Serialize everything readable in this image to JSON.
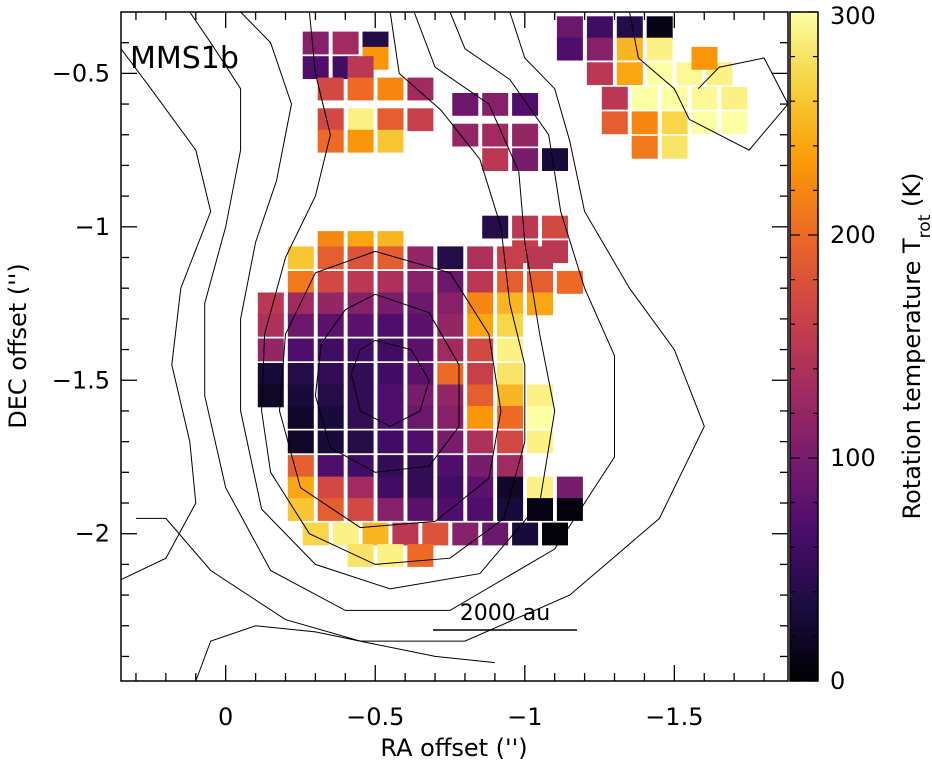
{
  "panel_label": "MMS1b",
  "scale_bar": {
    "label": "2000 au",
    "length_arcsec": 0.5
  },
  "chart_data": {
    "type": "heatmap",
    "title": "",
    "xlabel": "RA offset ('')",
    "ylabel": "DEC offset ('')",
    "colorbar_label": "Rotation temperature T",
    "colorbar_label_sub": "rot",
    "colorbar_label_unit": " (K)",
    "xlim": [
      0.35,
      -1.88
    ],
    "ylim": [
      -2.48,
      -0.3
    ],
    "x_ticks": [
      0,
      -0.5,
      -1,
      -1.5
    ],
    "x_tick_labels": [
      "0",
      "−0.5",
      "−1",
      "−1.5"
    ],
    "y_ticks": [
      -0.5,
      -1,
      -1.5,
      -2
    ],
    "y_tick_labels": [
      "−0.5",
      "−1",
      "−1.5",
      "−2"
    ],
    "colorbar_range": [
      0,
      300
    ],
    "colorbar_ticks": [
      0,
      100,
      200,
      300
    ],
    "colorbar_tick_labels": [
      "0",
      "100",
      "200",
      "300"
    ],
    "colormap": [
      "#000004",
      "#1b0c41",
      "#4a0c6b",
      "#781c6d",
      "#a52c60",
      "#cf4446",
      "#ed6925",
      "#fb9b06",
      "#f7d13d",
      "#fcffa4"
    ],
    "pixel_size_arcsec": 0.085,
    "grid": false,
    "cells": [
      [
        -0.3,
        -0.4,
        110
      ],
      [
        -0.4,
        -0.4,
        130
      ],
      [
        -0.5,
        -0.4,
        40
      ],
      [
        -0.5,
        -0.45,
        230
      ],
      [
        -0.3,
        -0.48,
        70
      ],
      [
        -0.4,
        -0.48,
        60
      ],
      [
        -0.45,
        -0.48,
        150
      ],
      [
        -0.35,
        -0.55,
        170
      ],
      [
        -0.45,
        -0.55,
        200
      ],
      [
        -0.55,
        -0.55,
        220
      ],
      [
        -0.65,
        -0.55,
        130
      ],
      [
        -0.35,
        -0.65,
        170
      ],
      [
        -0.45,
        -0.65,
        290
      ],
      [
        -0.55,
        -0.65,
        190
      ],
      [
        -0.65,
        -0.65,
        160
      ],
      [
        -0.35,
        -0.72,
        200
      ],
      [
        -0.45,
        -0.72,
        230
      ],
      [
        -0.55,
        -0.72,
        260
      ],
      [
        -0.8,
        -0.6,
        90
      ],
      [
        -0.9,
        -0.6,
        110
      ],
      [
        -1.0,
        -0.6,
        70
      ],
      [
        -0.8,
        -0.7,
        120
      ],
      [
        -0.9,
        -0.7,
        130
      ],
      [
        -1.0,
        -0.7,
        120
      ],
      [
        -0.9,
        -0.78,
        150
      ],
      [
        -1.0,
        -0.78,
        100
      ],
      [
        -1.1,
        -0.78,
        30
      ],
      [
        -1.15,
        -0.35,
        90
      ],
      [
        -1.25,
        -0.35,
        60
      ],
      [
        -1.35,
        -0.35,
        40
      ],
      [
        -1.45,
        -0.35,
        10
      ],
      [
        -1.15,
        -0.42,
        70
      ],
      [
        -1.25,
        -0.42,
        110
      ],
      [
        -1.35,
        -0.42,
        250
      ],
      [
        -1.45,
        -0.42,
        290
      ],
      [
        -1.25,
        -0.5,
        150
      ],
      [
        -1.35,
        -0.5,
        240
      ],
      [
        -1.45,
        -0.5,
        300
      ],
      [
        -1.55,
        -0.5,
        295
      ],
      [
        -1.65,
        -0.5,
        290
      ],
      [
        -1.6,
        -0.45,
        230
      ],
      [
        -1.3,
        -0.58,
        150
      ],
      [
        -1.4,
        -0.58,
        300
      ],
      [
        -1.5,
        -0.58,
        300
      ],
      [
        -1.6,
        -0.58,
        295
      ],
      [
        -1.7,
        -0.58,
        290
      ],
      [
        -1.3,
        -0.66,
        190
      ],
      [
        -1.4,
        -0.66,
        220
      ],
      [
        -1.5,
        -0.66,
        270
      ],
      [
        -1.6,
        -0.66,
        300
      ],
      [
        -1.7,
        -0.66,
        300
      ],
      [
        -1.4,
        -0.74,
        210
      ],
      [
        -1.5,
        -0.74,
        280
      ],
      [
        -0.9,
        -1.0,
        40
      ],
      [
        -1.0,
        -1.0,
        150
      ],
      [
        -1.1,
        -1.0,
        170
      ],
      [
        -1.0,
        -1.08,
        160
      ],
      [
        -1.1,
        -1.08,
        150
      ],
      [
        -0.35,
        -1.05,
        220
      ],
      [
        -0.45,
        -1.05,
        240
      ],
      [
        -0.55,
        -1.05,
        250
      ],
      [
        -0.25,
        -1.1,
        260
      ],
      [
        -0.35,
        -1.1,
        190
      ],
      [
        -0.45,
        -1.1,
        180
      ],
      [
        -0.55,
        -1.1,
        190
      ],
      [
        -0.65,
        -1.1,
        120
      ],
      [
        -0.75,
        -1.1,
        40
      ],
      [
        -0.85,
        -1.1,
        140
      ],
      [
        -0.95,
        -1.1,
        160
      ],
      [
        -1.05,
        -1.1,
        150
      ],
      [
        -0.25,
        -1.18,
        210
      ],
      [
        -0.35,
        -1.18,
        170
      ],
      [
        -0.45,
        -1.18,
        150
      ],
      [
        -0.55,
        -1.18,
        140
      ],
      [
        -0.65,
        -1.18,
        110
      ],
      [
        -0.75,
        -1.18,
        90
      ],
      [
        -0.85,
        -1.18,
        150
      ],
      [
        -0.95,
        -1.18,
        190
      ],
      [
        -1.05,
        -1.18,
        190
      ],
      [
        -1.15,
        -1.18,
        200
      ],
      [
        -0.15,
        -1.25,
        150
      ],
      [
        -0.25,
        -1.25,
        130
      ],
      [
        -0.35,
        -1.25,
        120
      ],
      [
        -0.45,
        -1.25,
        110
      ],
      [
        -0.55,
        -1.25,
        100
      ],
      [
        -0.65,
        -1.25,
        90
      ],
      [
        -0.75,
        -1.25,
        110
      ],
      [
        -0.85,
        -1.25,
        220
      ],
      [
        -0.95,
        -1.25,
        250
      ],
      [
        -1.05,
        -1.25,
        240
      ],
      [
        -0.15,
        -1.32,
        140
      ],
      [
        -0.25,
        -1.32,
        90
      ],
      [
        -0.35,
        -1.32,
        80
      ],
      [
        -0.45,
        -1.32,
        80
      ],
      [
        -0.55,
        -1.32,
        70
      ],
      [
        -0.65,
        -1.32,
        80
      ],
      [
        -0.75,
        -1.32,
        120
      ],
      [
        -0.85,
        -1.32,
        240
      ],
      [
        -0.95,
        -1.32,
        270
      ],
      [
        -0.15,
        -1.4,
        120
      ],
      [
        -0.25,
        -1.4,
        70
      ],
      [
        -0.35,
        -1.4,
        60
      ],
      [
        -0.45,
        -1.4,
        60
      ],
      [
        -0.55,
        -1.4,
        60
      ],
      [
        -0.65,
        -1.4,
        80
      ],
      [
        -0.75,
        -1.4,
        130
      ],
      [
        -0.85,
        -1.4,
        170
      ],
      [
        -0.95,
        -1.4,
        290
      ],
      [
        -0.15,
        -1.48,
        30
      ],
      [
        -0.25,
        -1.48,
        40
      ],
      [
        -0.35,
        -1.48,
        50
      ],
      [
        -0.45,
        -1.48,
        50
      ],
      [
        -0.55,
        -1.48,
        60
      ],
      [
        -0.65,
        -1.48,
        80
      ],
      [
        -0.75,
        -1.48,
        200
      ],
      [
        -0.85,
        -1.48,
        160
      ],
      [
        -0.95,
        -1.48,
        280
      ],
      [
        -0.15,
        -1.55,
        20
      ],
      [
        -0.25,
        -1.55,
        30
      ],
      [
        -0.35,
        -1.55,
        40
      ],
      [
        -0.45,
        -1.55,
        50
      ],
      [
        -0.55,
        -1.55,
        70
      ],
      [
        -0.65,
        -1.55,
        100
      ],
      [
        -0.75,
        -1.55,
        120
      ],
      [
        -0.85,
        -1.55,
        190
      ],
      [
        -0.95,
        -1.55,
        250
      ],
      [
        -1.05,
        -1.55,
        290
      ],
      [
        -0.25,
        -1.62,
        20
      ],
      [
        -0.35,
        -1.62,
        30
      ],
      [
        -0.45,
        -1.62,
        50
      ],
      [
        -0.55,
        -1.62,
        70
      ],
      [
        -0.65,
        -1.62,
        90
      ],
      [
        -0.75,
        -1.62,
        110
      ],
      [
        -0.85,
        -1.62,
        230
      ],
      [
        -0.95,
        -1.62,
        200
      ],
      [
        -1.05,
        -1.62,
        300
      ],
      [
        -0.25,
        -1.7,
        20
      ],
      [
        -0.35,
        -1.7,
        30
      ],
      [
        -0.45,
        -1.7,
        40
      ],
      [
        -0.55,
        -1.7,
        60
      ],
      [
        -0.65,
        -1.7,
        70
      ],
      [
        -0.75,
        -1.7,
        100
      ],
      [
        -0.85,
        -1.7,
        140
      ],
      [
        -0.95,
        -1.7,
        170
      ],
      [
        -1.05,
        -1.7,
        290
      ],
      [
        -0.25,
        -1.78,
        190
      ],
      [
        -0.35,
        -1.78,
        70
      ],
      [
        -0.45,
        -1.78,
        60
      ],
      [
        -0.55,
        -1.78,
        50
      ],
      [
        -0.65,
        -1.78,
        50
      ],
      [
        -0.75,
        -1.78,
        70
      ],
      [
        -0.85,
        -1.78,
        100
      ],
      [
        -0.95,
        -1.78,
        130
      ],
      [
        -0.25,
        -1.85,
        240
      ],
      [
        -0.35,
        -1.85,
        170
      ],
      [
        -0.45,
        -1.85,
        130
      ],
      [
        -0.55,
        -1.85,
        60
      ],
      [
        -0.65,
        -1.85,
        50
      ],
      [
        -0.75,
        -1.85,
        60
      ],
      [
        -0.85,
        -1.85,
        80
      ],
      [
        -0.95,
        -1.85,
        20
      ],
      [
        -1.05,
        -1.85,
        290
      ],
      [
        -1.15,
        -1.85,
        100
      ],
      [
        -0.25,
        -1.92,
        260
      ],
      [
        -0.35,
        -1.92,
        190
      ],
      [
        -0.45,
        -1.92,
        170
      ],
      [
        -0.55,
        -1.92,
        110
      ],
      [
        -0.65,
        -1.92,
        80
      ],
      [
        -0.75,
        -1.92,
        70
      ],
      [
        -0.85,
        -1.92,
        70
      ],
      [
        -0.95,
        -1.92,
        30
      ],
      [
        -1.05,
        -1.92,
        10
      ],
      [
        -1.15,
        -1.92,
        5
      ],
      [
        -0.3,
        -2.0,
        270
      ],
      [
        -0.4,
        -2.0,
        290
      ],
      [
        -0.5,
        -2.0,
        250
      ],
      [
        -0.6,
        -2.0,
        150
      ],
      [
        -0.7,
        -2.0,
        180
      ],
      [
        -0.8,
        -2.0,
        110
      ],
      [
        -0.9,
        -2.0,
        90
      ],
      [
        -1.0,
        -2.0,
        30
      ],
      [
        -1.1,
        -2.0,
        5
      ],
      [
        -0.45,
        -2.07,
        280
      ],
      [
        -0.55,
        -2.07,
        290
      ],
      [
        -0.65,
        -2.07,
        200
      ]
    ],
    "contours": [
      [
        [
          -0.5,
          -1.37
        ],
        [
          -0.62,
          -1.4
        ],
        [
          -0.68,
          -1.5
        ],
        [
          -0.65,
          -1.6
        ],
        [
          -0.55,
          -1.65
        ],
        [
          -0.45,
          -1.6
        ],
        [
          -0.42,
          -1.48
        ],
        [
          -0.45,
          -1.4
        ],
        [
          -0.5,
          -1.37
        ]
      ],
      [
        [
          -0.5,
          -1.22
        ],
        [
          -0.68,
          -1.28
        ],
        [
          -0.78,
          -1.45
        ],
        [
          -0.78,
          -1.65
        ],
        [
          -0.68,
          -1.78
        ],
        [
          -0.5,
          -1.8
        ],
        [
          -0.35,
          -1.72
        ],
        [
          -0.3,
          -1.55
        ],
        [
          -0.32,
          -1.38
        ],
        [
          -0.4,
          -1.27
        ],
        [
          -0.5,
          -1.22
        ]
      ],
      [
        [
          -0.5,
          -1.08
        ],
        [
          -0.75,
          -1.15
        ],
        [
          -0.88,
          -1.35
        ],
        [
          -0.92,
          -1.6
        ],
        [
          -0.88,
          -1.82
        ],
        [
          -0.7,
          -1.96
        ],
        [
          -0.45,
          -1.98
        ],
        [
          -0.25,
          -1.85
        ],
        [
          -0.18,
          -1.6
        ],
        [
          -0.2,
          -1.35
        ],
        [
          -0.3,
          -1.15
        ],
        [
          -0.5,
          -1.08
        ]
      ],
      [
        [
          -0.55,
          -0.3
        ],
        [
          -0.58,
          -0.5
        ],
        [
          -0.72,
          -0.62
        ],
        [
          -0.85,
          -0.78
        ],
        [
          -0.92,
          -1.0
        ],
        [
          -0.95,
          -1.25
        ],
        [
          -1.0,
          -1.45
        ],
        [
          -1.0,
          -1.7
        ],
        [
          -0.93,
          -1.95
        ],
        [
          -0.75,
          -2.08
        ],
        [
          -0.5,
          -2.1
        ],
        [
          -0.28,
          -2.0
        ],
        [
          -0.15,
          -1.8
        ],
        [
          -0.12,
          -1.6
        ],
        [
          -0.13,
          -1.35
        ],
        [
          -0.2,
          -1.1
        ],
        [
          -0.3,
          -0.9
        ],
        [
          -0.35,
          -0.7
        ],
        [
          -0.3,
          -0.5
        ],
        [
          -0.28,
          -0.3
        ]
      ],
      [
        [
          -0.63,
          -0.3
        ],
        [
          -0.7,
          -0.48
        ],
        [
          -0.88,
          -0.6
        ],
        [
          -0.98,
          -0.82
        ],
        [
          -1.0,
          -1.05
        ],
        [
          -1.05,
          -1.35
        ],
        [
          -1.1,
          -1.6
        ],
        [
          -1.05,
          -1.9
        ],
        [
          -0.85,
          -2.13
        ],
        [
          -0.55,
          -2.18
        ],
        [
          -0.3,
          -2.1
        ],
        [
          -0.12,
          -1.92
        ],
        [
          -0.05,
          -1.6
        ],
        [
          -0.05,
          -1.3
        ],
        [
          -0.1,
          -1.05
        ],
        [
          -0.17,
          -0.85
        ],
        [
          -0.22,
          -0.6
        ],
        [
          -0.15,
          -0.4
        ],
        [
          -0.05,
          -0.3
        ]
      ],
      [
        [
          -0.75,
          -0.3
        ],
        [
          -0.8,
          -0.42
        ],
        [
          -0.95,
          -0.52
        ],
        [
          -1.08,
          -0.7
        ],
        [
          -1.12,
          -0.95
        ],
        [
          -1.2,
          -1.2
        ],
        [
          -1.3,
          -1.42
        ],
        [
          -1.3,
          -1.75
        ],
        [
          -1.1,
          -2.05
        ],
        [
          -0.75,
          -2.25
        ],
        [
          -0.4,
          -2.25
        ],
        [
          -0.15,
          -2.12
        ],
        [
          0.0,
          -1.85
        ],
        [
          0.07,
          -1.55
        ],
        [
          0.07,
          -1.25
        ],
        [
          0.0,
          -1.0
        ],
        [
          -0.05,
          -0.75
        ],
        [
          -0.05,
          -0.55
        ],
        [
          0.05,
          -0.4
        ],
        [
          0.12,
          -0.3
        ]
      ],
      [
        [
          -0.95,
          -0.3
        ],
        [
          -1.0,
          -0.45
        ],
        [
          -1.1,
          -0.55
        ],
        [
          -1.15,
          -0.72
        ],
        [
          -1.2,
          -0.95
        ],
        [
          -1.35,
          -1.2
        ],
        [
          -1.5,
          -1.4
        ],
        [
          -1.6,
          -1.65
        ],
        [
          -1.45,
          -1.95
        ],
        [
          -1.15,
          -2.2
        ],
        [
          -0.8,
          -2.35
        ],
        [
          -0.45,
          -2.35
        ],
        [
          -0.2,
          -2.28
        ],
        [
          0.05,
          -2.12
        ],
        [
          0.2,
          -1.95
        ],
        [
          0.3,
          -1.95
        ]
      ],
      [
        [
          0.35,
          -0.42
        ],
        [
          0.25,
          -0.55
        ],
        [
          0.1,
          -0.75
        ],
        [
          0.05,
          -0.95
        ],
        [
          0.15,
          -1.2
        ],
        [
          0.18,
          -1.45
        ],
        [
          0.12,
          -1.7
        ],
        [
          0.1,
          -1.9
        ],
        [
          0.2,
          -2.08
        ],
        [
          0.35,
          -2.15
        ]
      ],
      [
        [
          -1.35,
          -0.3
        ],
        [
          -1.38,
          -0.45
        ],
        [
          -1.5,
          -0.55
        ],
        [
          -1.55,
          -0.65
        ],
        [
          -1.75,
          -0.75
        ],
        [
          -1.88,
          -0.6
        ],
        [
          -1.8,
          -0.45
        ],
        [
          -1.65,
          -0.48
        ],
        [
          -1.58,
          -0.55
        ]
      ],
      [
        [
          0.1,
          -2.48
        ],
        [
          0.05,
          -2.35
        ],
        [
          -0.1,
          -2.3
        ],
        [
          -0.3,
          -2.32
        ],
        [
          -0.5,
          -2.36
        ],
        [
          -0.7,
          -2.4
        ],
        [
          -0.9,
          -2.42
        ]
      ]
    ]
  }
}
